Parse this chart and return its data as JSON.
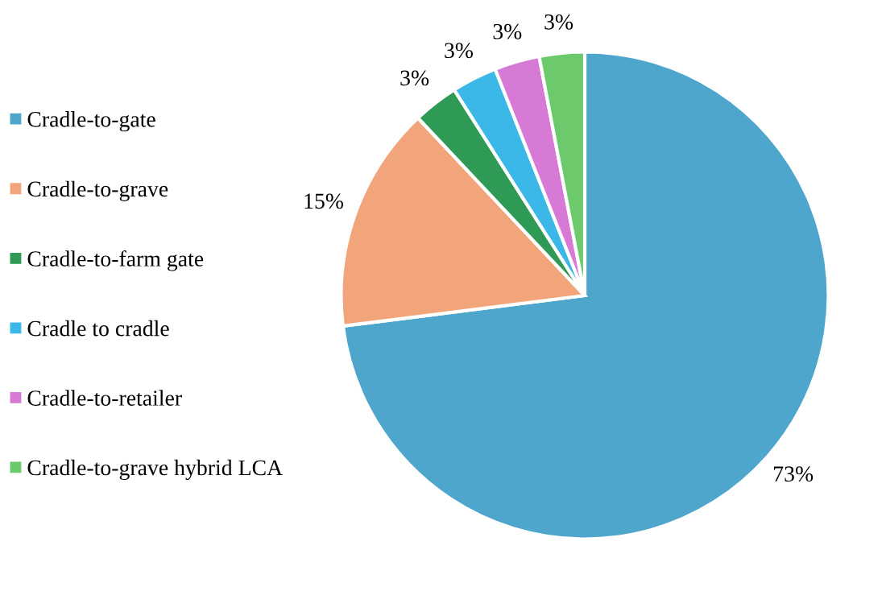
{
  "chart_data": {
    "type": "pie",
    "categories": [
      "Cradle-to-gate",
      "Cradle-to-grave",
      "Cradle-to-farm gate",
      "Cradle to cradle",
      "Cradle-to-retailer",
      "Cradle-to-grave hybrid LCA"
    ],
    "values": [
      73,
      15,
      3,
      3,
      3,
      3
    ],
    "value_labels": [
      "73%",
      "15%",
      "3%",
      "3%",
      "3%",
      "3%"
    ],
    "colors": [
      "#4fa6cc",
      "#f2a57a",
      "#2e9a55",
      "#3bb8e8",
      "#d77ad6",
      "#6cc96c"
    ],
    "legend": "left"
  }
}
